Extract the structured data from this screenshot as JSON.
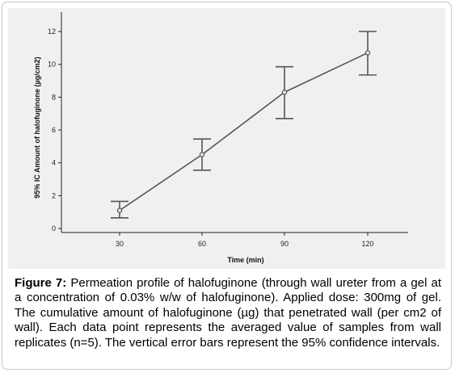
{
  "chart_data": {
    "type": "line",
    "x": [
      30,
      60,
      90,
      120
    ],
    "series": [
      {
        "values": [
          1.1,
          4.5,
          8.3,
          10.7
        ],
        "ci_lower": [
          0.65,
          3.55,
          6.7,
          9.35
        ],
        "ci_upper": [
          1.65,
          5.45,
          9.85,
          12.0
        ]
      }
    ],
    "xlabel": "Time (min)",
    "ylabel": "95% IC Amount of halofuginone (µg/cm2)",
    "x_ticks": [
      "30",
      "60",
      "90",
      "120"
    ],
    "y_ticks": [
      "0",
      "2",
      "4",
      "6",
      "8",
      "10",
      "12"
    ],
    "ylim": [
      0,
      13
    ],
    "grid": false,
    "error_bars": "95% confidence intervals",
    "background_color": "#f0f0f0",
    "line_color": "#555555"
  },
  "caption": {
    "lead": "Figure 7:",
    "text": " Permeation profile of halofuginone (through wall ureter from a gel at a concentration of 0.03% w/w of halofuginone). Applied dose: 300mg of gel. The cumulative amount of halofuginone (µg) that penetrated wall (per cm2 of wall). Each data point represents the averaged value of samples from wall replicates (n=5). The vertical error bars represent the 95% confidence intervals."
  }
}
